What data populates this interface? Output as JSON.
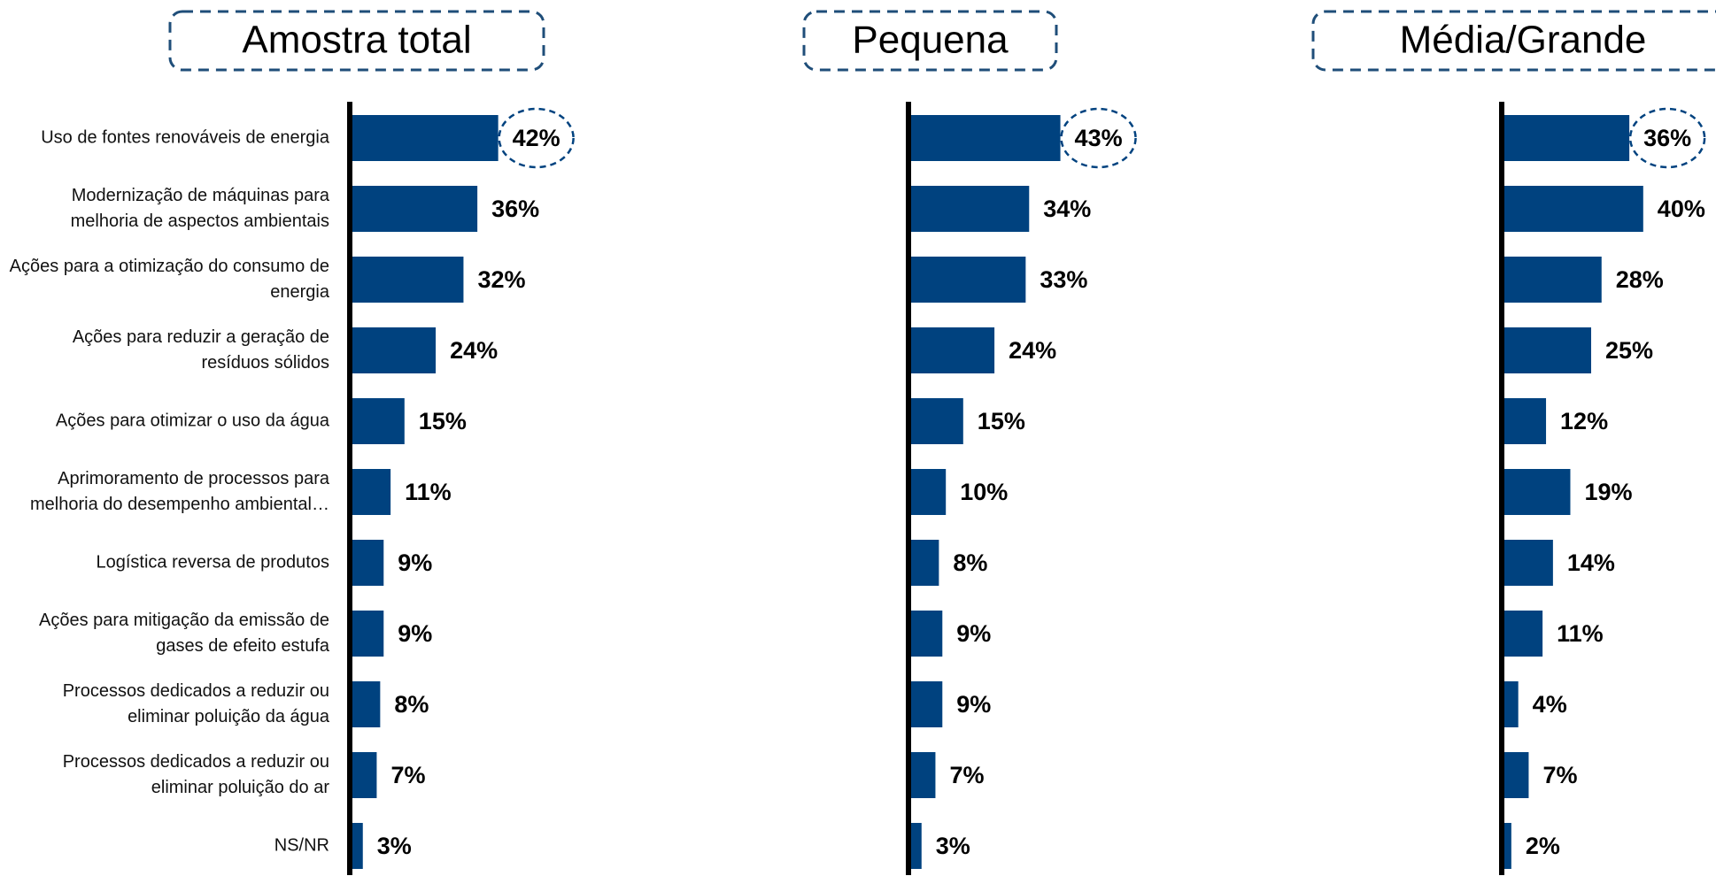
{
  "chart_data": {
    "type": "bar",
    "categories": [
      "Uso de fontes renováveis de energia",
      "Modernização de máquinas para melhoria de aspectos ambientais",
      "Ações para a otimização do consumo de energia",
      "Ações para reduzir a geração de resíduos sólidos",
      "Ações para otimizar o uso da água",
      "Aprimoramento de processos para melhoria do desempenho ambiental…",
      "Logística reversa de produtos",
      "Ações para mitigação da emissão de gases de efeito estufa",
      "Processos dedicados a reduzir ou eliminar poluição da água",
      "Processos dedicados a reduzir ou eliminar poluição do ar",
      "NS/NR"
    ],
    "highlight": 0,
    "series": [
      {
        "name": "Amostra total",
        "color": "#00427f",
        "values": [
          42,
          36,
          32,
          24,
          15,
          11,
          9,
          9,
          8,
          7,
          3
        ],
        "value_labels": [
          "42%",
          "36%",
          "32%",
          "24%",
          "15%",
          "11%",
          "9%",
          "9%",
          "8%",
          "7%",
          "3%"
        ]
      },
      {
        "name": "Pequena",
        "color": "#00427f",
        "values": [
          43,
          34,
          33,
          24,
          15,
          10,
          8,
          9,
          9,
          7,
          3
        ],
        "value_labels": [
          "43%",
          "34%",
          "33%",
          "24%",
          "15%",
          "10%",
          "8%",
          "9%",
          "9%",
          "7%",
          "3%"
        ]
      },
      {
        "name": "Média/Grande",
        "color": "#00427f",
        "values": [
          36,
          40,
          28,
          25,
          12,
          19,
          14,
          11,
          4,
          7,
          2
        ],
        "value_labels": [
          "36%",
          "40%",
          "28%",
          "25%",
          "12%",
          "19%",
          "14%",
          "11%",
          "4%",
          "7%",
          "2%"
        ]
      }
    ]
  }
}
